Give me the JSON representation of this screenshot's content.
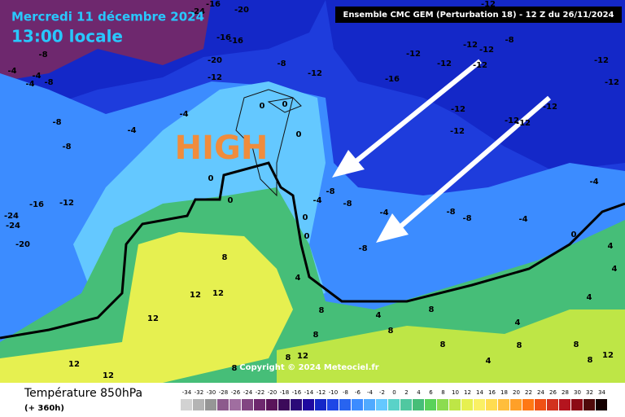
{
  "header": {
    "date": "Mercredi 11 décembre 2024",
    "time": "13:00 locale",
    "model": "Ensemble CMC GEM  (Perturbation 18)  -  12 Z du 26/11/2024"
  },
  "annotation": "HIGH",
  "copyright": "Copyright © 2024 Meteociel.fr",
  "legend": {
    "title": "Température 850hPa",
    "subtitle": "(+ 360h)",
    "scale": [
      -34,
      -32,
      -30,
      -28,
      -26,
      -24,
      -22,
      -20,
      -18,
      -16,
      -14,
      -12,
      -10,
      -8,
      -6,
      -4,
      -2,
      0,
      2,
      4,
      6,
      8,
      10,
      12,
      14,
      16,
      18,
      20,
      22,
      24,
      26,
      28,
      30,
      32,
      34
    ],
    "colors": [
      "#d2d2d2",
      "#b4b4b4",
      "#969696",
      "#8c5a8c",
      "#a06ea0",
      "#824682",
      "#6e286e",
      "#5a145a",
      "#3c0a5a",
      "#2a0a78",
      "#1e0aa0",
      "#1428c8",
      "#1e46e6",
      "#2864f0",
      "#3c8cff",
      "#50aaff",
      "#64c8ff",
      "#5ad2c8",
      "#50c8a0",
      "#46be78",
      "#5ad25a",
      "#8cdc50",
      "#bee646",
      "#e6f050",
      "#faf064",
      "#ffdc50",
      "#ffbe3c",
      "#ffa028",
      "#ff7814",
      "#f05014",
      "#d2321e",
      "#b4141e",
      "#8c0a14",
      "#500a0a",
      "#140000"
    ]
  },
  "map_labels": [
    -16,
    -20,
    -24,
    -8,
    -4,
    -4,
    -8,
    -4,
    -16,
    -16,
    -20,
    -12,
    -8,
    -12,
    -16,
    -12,
    -12,
    -12,
    -12,
    -8,
    -12,
    -12,
    -12,
    -12,
    -12,
    -12,
    -12,
    -12,
    -12,
    -4,
    -4,
    -8,
    -8,
    -16,
    -12,
    -24,
    -24,
    -20,
    0,
    0,
    0,
    0,
    0,
    0,
    0,
    -8,
    -4,
    -8,
    -4,
    -8,
    -8,
    -8,
    -4,
    -4,
    0,
    4,
    4,
    8,
    12,
    12,
    12,
    4,
    8,
    8,
    8,
    8,
    12,
    12,
    12,
    8,
    4,
    4,
    8,
    8,
    12,
    8,
    4,
    8,
    4,
    8
  ]
}
